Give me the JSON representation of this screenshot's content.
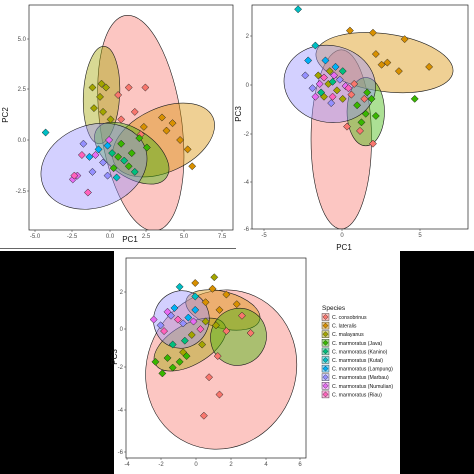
{
  "colors": {
    "C. consobrinus": "#F8766D",
    "C. lateralis": "#D89000",
    "C. malayanus": "#A3A500",
    "C. marmoratus (Java)": "#39B600",
    "C. marmoratus (Kanino)": "#00BF7D",
    "C. marmoratus (Kutai)": "#00BFC4",
    "C. marmoratus (Lampung)": "#00B0F6",
    "C. marmoratus (Marbau)": "#9590FF",
    "C. marmoratus (Numulian)": "#E76BF3",
    "C. marmoratus (Riau)": "#FF62BC"
  },
  "legend": {
    "title": "Species",
    "placement": "right of bottom panel",
    "entries": [
      "C. consobrinus",
      "C. lateralis",
      "C. malayanus",
      "C. marmoratus (Java)",
      "C. marmoratus (Kanino)",
      "C. marmoratus (Kutai)",
      "C. marmoratus (Lampung)",
      "C. marmoratus (Marbau)",
      "C. marmoratus (Numulian)",
      "C. marmoratus (Riau)"
    ]
  },
  "chart_data": [
    {
      "type": "scatter",
      "xlabel": "PC1",
      "ylabel": "PC2",
      "xlim": [
        -5.5,
        8
      ],
      "ylim": [
        -5,
        7
      ],
      "xticks": [
        "-5.0",
        "-2.5",
        "0.0",
        "2.5",
        "5.0",
        "7.5"
      ],
      "yticks": [
        "5.0",
        "2.5",
        "0.0",
        "-2.5"
      ],
      "ellipses": [
        {
          "species": "C. consobrinus",
          "cx": 1.9,
          "cy": 0.7,
          "rx": 2.7,
          "ry": 5.8,
          "angle": 8
        },
        {
          "species": "C. lateralis",
          "cx": 3.4,
          "cy": -0.2,
          "rx": 3.6,
          "ry": 1.7,
          "angle": 25
        },
        {
          "species": "C. malayanus",
          "cx": -0.7,
          "cy": 2.2,
          "rx": 1.2,
          "ry": 2.6,
          "angle": -3
        },
        {
          "species": "C. marmoratus (Java)",
          "cx": 1.3,
          "cy": -0.9,
          "rx": 2.8,
          "ry": 1.25,
          "angle": -35
        },
        {
          "species": "C. marmoratus (Marbau)",
          "cx": -1.2,
          "cy": -1.6,
          "rx": 3.6,
          "ry": 2.2,
          "angle": 20
        }
      ],
      "points": [
        {
          "species": "C. consobrinus",
          "x": 0.4,
          "y": 2.2
        },
        {
          "species": "C. consobrinus",
          "x": 1.1,
          "y": 2.6
        },
        {
          "species": "C. consobrinus",
          "x": 2.2,
          "y": 2.6
        },
        {
          "species": "C. consobrinus",
          "x": 1.5,
          "y": 1.3
        },
        {
          "species": "C. consobrinus",
          "x": 0.6,
          "y": 0.9
        },
        {
          "species": "C. consobrinus",
          "x": 1.9,
          "y": 0.1
        },
        {
          "species": "C. lateralis",
          "x": 3.3,
          "y": 1.0
        },
        {
          "species": "C. lateralis",
          "x": 4.0,
          "y": 0.7
        },
        {
          "species": "C. lateralis",
          "x": 4.5,
          "y": -0.2
        },
        {
          "species": "C. lateralis",
          "x": 3.6,
          "y": 0.3
        },
        {
          "species": "C. lateralis",
          "x": 5.0,
          "y": -0.7
        },
        {
          "species": "C. lateralis",
          "x": 5.3,
          "y": -1.6
        },
        {
          "species": "C. lateralis",
          "x": 2.1,
          "y": 0.5
        },
        {
          "species": "C. malayanus",
          "x": -1.3,
          "y": 2.6
        },
        {
          "species": "C. malayanus",
          "x": -0.7,
          "y": 2.8
        },
        {
          "species": "C. malayanus",
          "x": -0.4,
          "y": 2.6
        },
        {
          "species": "C. malayanus",
          "x": -0.8,
          "y": 2.1
        },
        {
          "species": "C. malayanus",
          "x": -1.2,
          "y": 1.5
        },
        {
          "species": "C. malayanus",
          "x": -0.6,
          "y": 1.3
        },
        {
          "species": "C. malayanus",
          "x": -0.1,
          "y": 0.9
        },
        {
          "species": "C. marmoratus (Java)",
          "x": 0.6,
          "y": -0.4
        },
        {
          "species": "C. marmoratus (Java)",
          "x": 1.3,
          "y": -0.9
        },
        {
          "species": "C. marmoratus (Java)",
          "x": 1.8,
          "y": -0.1
        },
        {
          "species": "C. marmoratus (Java)",
          "x": 0.4,
          "y": -1.1
        },
        {
          "species": "C. marmoratus (Java)",
          "x": 2.3,
          "y": -0.6
        },
        {
          "species": "C. marmoratus (Java)",
          "x": 1.1,
          "y": -1.6
        },
        {
          "species": "C. marmoratus (Java)",
          "x": 0.1,
          "y": -1.7
        },
        {
          "species": "C. marmoratus (Kanino)",
          "x": 0.8,
          "y": -1.3
        },
        {
          "species": "C. marmoratus (Kanino)",
          "x": 1.5,
          "y": -1.9
        },
        {
          "species": "C. marmoratus (Kanino)",
          "x": 0.0,
          "y": -0.9
        },
        {
          "species": "C. marmoratus (Kutai)",
          "x": -4.4,
          "y": 0.2
        },
        {
          "species": "C. marmoratus (Kutai)",
          "x": 0.3,
          "y": -2.2
        },
        {
          "species": "C. marmoratus (Lampung)",
          "x": -0.9,
          "y": -0.7
        },
        {
          "species": "C. marmoratus (Lampung)",
          "x": -0.3,
          "y": -0.5
        },
        {
          "species": "C. marmoratus (Lampung)",
          "x": -1.5,
          "y": -1.1
        },
        {
          "species": "C. marmoratus (Marbau)",
          "x": -1.9,
          "y": -0.4
        },
        {
          "species": "C. marmoratus (Marbau)",
          "x": -0.6,
          "y": -1.4
        },
        {
          "species": "C. marmoratus (Marbau)",
          "x": -1.3,
          "y": -1.9
        },
        {
          "species": "C. marmoratus (Marbau)",
          "x": -0.3,
          "y": -2.1
        },
        {
          "species": "C. marmoratus (Numulian)",
          "x": -2.3,
          "y": -2.1
        },
        {
          "species": "C. marmoratus (Numulian)",
          "x": -2.6,
          "y": -2.3
        },
        {
          "species": "C. marmoratus (Numulian)",
          "x": -1.1,
          "y": -1.0
        },
        {
          "species": "C. marmoratus (Numulian)",
          "x": -0.2,
          "y": -0.2
        },
        {
          "species": "C. marmoratus (Riau)",
          "x": -2.5,
          "y": -2.1
        },
        {
          "species": "C. marmoratus (Riau)",
          "x": -2.0,
          "y": -1.0
        },
        {
          "species": "C. marmoratus (Riau)",
          "x": -1.6,
          "y": -3.0
        }
      ]
    },
    {
      "type": "scatter",
      "xlabel": "PC1",
      "ylabel": "PC3",
      "xlim": [
        -6,
        9
      ],
      "ylim": [
        -6.3,
        4.2
      ],
      "xticks": [
        "-5",
        "0",
        "5"
      ],
      "yticks": [
        "2",
        "0",
        "-2",
        "-4",
        "-6"
      ],
      "ellipses": [
        {
          "species": "C. consobrinus",
          "cx": 0.2,
          "cy": -2.1,
          "rx": 2.1,
          "ry": 4.2,
          "angle": 0
        },
        {
          "species": "C. lateralis",
          "cx": 3.2,
          "cy": 1.5,
          "rx": 4.8,
          "ry": 1.35,
          "angle": -8
        },
        {
          "species": "C. marmoratus (Java)",
          "cx": 1.9,
          "cy": -0.8,
          "rx": 1.3,
          "ry": 1.6,
          "angle": 0
        },
        {
          "species": "C. marmoratus (Marbau)",
          "cx": -0.6,
          "cy": 0.5,
          "rx": 3.2,
          "ry": 1.8,
          "angle": -12
        }
      ],
      "points": [
        {
          "species": "C. consobrinus",
          "x": 1.1,
          "y": 0.5
        },
        {
          "species": "C. consobrinus",
          "x": 1.8,
          "y": -0.2
        },
        {
          "species": "C. consobrinus",
          "x": 0.6,
          "y": -1.5
        },
        {
          "species": "C. consobrinus",
          "x": 1.5,
          "y": -1.7
        },
        {
          "species": "C. consobrinus",
          "x": 0.9,
          "y": 0.0
        },
        {
          "species": "C. consobrinus",
          "x": 2.4,
          "y": -2.3
        },
        {
          "species": "C. lateralis",
          "x": 0.8,
          "y": 3.0
        },
        {
          "species": "C. lateralis",
          "x": 2.4,
          "y": 2.9
        },
        {
          "species": "C. lateralis",
          "x": 4.6,
          "y": 2.6
        },
        {
          "species": "C. lateralis",
          "x": 3.4,
          "y": 1.5
        },
        {
          "species": "C. lateralis",
          "x": 4.2,
          "y": 1.1
        },
        {
          "species": "C. lateralis",
          "x": 6.3,
          "y": 1.3
        },
        {
          "species": "C. lateralis",
          "x": 2.6,
          "y": 1.9
        },
        {
          "species": "C. lateralis",
          "x": 3.0,
          "y": 1.4
        },
        {
          "species": "C. malayanus",
          "x": -1.4,
          "y": 0.9
        },
        {
          "species": "C. malayanus",
          "x": -0.7,
          "y": 0.5
        },
        {
          "species": "C. malayanus",
          "x": -0.1,
          "y": 0.2
        },
        {
          "species": "C. malayanus",
          "x": -1.0,
          "y": -0.1
        },
        {
          "species": "C. malayanus",
          "x": 0.3,
          "y": -0.2
        },
        {
          "species": "C. malayanus",
          "x": -0.6,
          "y": 1.1
        },
        {
          "species": "C. marmoratus (Java)",
          "x": 1.3,
          "y": -0.5
        },
        {
          "species": "C. marmoratus (Java)",
          "x": 1.9,
          "y": -0.9
        },
        {
          "species": "C. marmoratus (Java)",
          "x": 2.3,
          "y": -0.2
        },
        {
          "species": "C. marmoratus (Java)",
          "x": 1.6,
          "y": -1.3
        },
        {
          "species": "C. marmoratus (Java)",
          "x": 2.6,
          "y": -1.0
        },
        {
          "species": "C. marmoratus (Java)",
          "x": 2.0,
          "y": 0.1
        },
        {
          "species": "C. marmoratus (Java)",
          "x": 5.3,
          "y": -0.2
        },
        {
          "species": "C. marmoratus (Kanino)",
          "x": -0.4,
          "y": 0.6
        },
        {
          "species": "C. marmoratus (Kanino)",
          "x": 0.3,
          "y": 1.1
        },
        {
          "species": "C. marmoratus (Kanino)",
          "x": -1.2,
          "y": 0.1
        },
        {
          "species": "C. marmoratus (Kutai)",
          "x": -2.8,
          "y": 4.0
        },
        {
          "species": "C. marmoratus (Kutai)",
          "x": -1.6,
          "y": 2.3
        },
        {
          "species": "C. marmoratus (Lampung)",
          "x": -2.1,
          "y": 1.6
        },
        {
          "species": "C. marmoratus (Lampung)",
          "x": -0.9,
          "y": 1.6
        },
        {
          "species": "C. marmoratus (Lampung)",
          "x": -0.2,
          "y": 1.3
        },
        {
          "species": "C. marmoratus (Marbau)",
          "x": -1.8,
          "y": 0.3
        },
        {
          "species": "C. marmoratus (Marbau)",
          "x": -2.3,
          "y": 0.9
        },
        {
          "species": "C. marmoratus (Marbau)",
          "x": 0.1,
          "y": 0.7
        },
        {
          "species": "C. marmoratus (Marbau)",
          "x": -0.5,
          "y": -0.4
        },
        {
          "species": "C. marmoratus (Numulian)",
          "x": -1.3,
          "y": 0.5
        },
        {
          "species": "C. marmoratus (Numulian)",
          "x": -0.3,
          "y": 0.9
        },
        {
          "species": "C. marmoratus (Numulian)",
          "x": 0.5,
          "y": 0.4
        },
        {
          "species": "C. marmoratus (Numulian)",
          "x": -1.6,
          "y": -0.1
        },
        {
          "species": "C. marmoratus (Riau)",
          "x": -1.0,
          "y": 0.8
        },
        {
          "species": "C. marmoratus (Riau)",
          "x": 0.7,
          "y": 0.3
        },
        {
          "species": "C. marmoratus (Riau)",
          "x": -0.4,
          "y": -0.1
        }
      ]
    },
    {
      "type": "scatter",
      "xlabel": "",
      "ylabel": "PC3",
      "xlim": [
        -4.2,
        6.2
      ],
      "ylim": [
        -6.8,
        3.6
      ],
      "xticks": [
        "-4",
        "-2",
        "0",
        "2",
        "4",
        "6"
      ],
      "yticks": [
        "2",
        "0",
        "-2",
        "-4",
        "-6"
      ],
      "ellipses": [
        {
          "species": "C. consobrinus",
          "cx": 1.3,
          "cy": -2.2,
          "rx": 4.3,
          "ry": 4.2,
          "angle": -25
        },
        {
          "species": "C. lateralis",
          "cx": 1.4,
          "cy": 0.9,
          "rx": 2.2,
          "ry": 0.95,
          "angle": -15
        },
        {
          "species": "C. malayanus",
          "cx": -0.5,
          "cy": -0.9,
          "rx": 2.3,
          "ry": 1.05,
          "angle": 30
        },
        {
          "species": "C. marmoratus (Java)",
          "cx": 2.3,
          "cy": -0.5,
          "rx": 1.6,
          "ry": 1.5,
          "angle": -30
        },
        {
          "species": "C. marmoratus (Marbau)",
          "cx": -1.0,
          "cy": 0.4,
          "rx": 1.6,
          "ry": 1.5,
          "angle": -20
        }
      ],
      "points": [
        {
          "species": "C. consobrinus",
          "x": 1.6,
          "y": -0.2
        },
        {
          "species": "C. consobrinus",
          "x": 2.5,
          "y": 0.6
        },
        {
          "species": "C. consobrinus",
          "x": 3.0,
          "y": -0.3
        },
        {
          "species": "C. consobrinus",
          "x": 1.1,
          "y": -1.5
        },
        {
          "species": "C. consobrinus",
          "x": 0.6,
          "y": -2.6
        },
        {
          "species": "C. consobrinus",
          "x": 1.2,
          "y": -3.5
        },
        {
          "species": "C. consobrinus",
          "x": 0.3,
          "y": -4.6
        },
        {
          "species": "C. lateralis",
          "x": -0.2,
          "y": 2.3
        },
        {
          "species": "C. lateralis",
          "x": 0.8,
          "y": 2.0
        },
        {
          "species": "C. lateralis",
          "x": 1.6,
          "y": 1.7
        },
        {
          "species": "C. lateralis",
          "x": 2.2,
          "y": 1.2
        },
        {
          "species": "C. lateralis",
          "x": 1.2,
          "y": 0.9
        },
        {
          "species": "C. lateralis",
          "x": 0.4,
          "y": 1.3
        },
        {
          "species": "C. malayanus",
          "x": 0.9,
          "y": 2.6
        },
        {
          "species": "C. malayanus",
          "x": -0.4,
          "y": -0.4
        },
        {
          "species": "C. malayanus",
          "x": 0.2,
          "y": -0.9
        },
        {
          "species": "C. malayanus",
          "x": -0.9,
          "y": -1.3
        },
        {
          "species": "C. malayanus",
          "x": 1.0,
          "y": 0.1
        },
        {
          "species": "C. malayanus",
          "x": 0.4,
          "y": 0.3
        },
        {
          "species": "C. marmoratus (Java)",
          "x": -1.8,
          "y": -1.6
        },
        {
          "species": "C. marmoratus (Java)",
          "x": -1.1,
          "y": -1.8
        },
        {
          "species": "C. marmoratus (Java)",
          "x": -0.7,
          "y": -1.5
        },
        {
          "species": "C. marmoratus (Java)",
          "x": -2.1,
          "y": -2.4
        },
        {
          "species": "C. marmoratus (Java)",
          "x": -1.5,
          "y": -2.1
        },
        {
          "species": "C. marmoratus (Java)",
          "x": -2.5,
          "y": -1.8
        },
        {
          "species": "C. marmoratus (Kanino)",
          "x": -0.8,
          "y": -0.7
        },
        {
          "species": "C. marmoratus (Kanino)",
          "x": -1.5,
          "y": -0.9
        },
        {
          "species": "C. marmoratus (Kutai)",
          "x": -1.1,
          "y": 2.1
        },
        {
          "species": "C. marmoratus (Kutai)",
          "x": -0.2,
          "y": 1.6
        },
        {
          "species": "C. marmoratus (Lampung)",
          "x": -0.6,
          "y": 0.5
        },
        {
          "species": "C. marmoratus (Lampung)",
          "x": -1.4,
          "y": 1.0
        },
        {
          "species": "C. marmoratus (Lampung)",
          "x": -0.2,
          "y": 0.9
        },
        {
          "species": "C. marmoratus (Marbau)",
          "x": -2.2,
          "y": 0.1
        },
        {
          "species": "C. marmoratus (Marbau)",
          "x": -1.6,
          "y": 0.6
        },
        {
          "species": "C. marmoratus (Marbau)",
          "x": -0.9,
          "y": 0.2
        },
        {
          "species": "C. marmoratus (Numulian)",
          "x": -1.8,
          "y": 0.8
        },
        {
          "species": "C. marmoratus (Numulian)",
          "x": -0.3,
          "y": 0.3
        },
        {
          "species": "C. marmoratus (Numulian)",
          "x": -2.6,
          "y": 0.4
        },
        {
          "species": "C. marmoratus (Riau)",
          "x": -1.2,
          "y": 0.4
        },
        {
          "species": "C. marmoratus (Riau)",
          "x": 0.1,
          "y": -0.1
        },
        {
          "species": "C. marmoratus (Riau)",
          "x": -2.0,
          "y": -0.2
        }
      ]
    }
  ]
}
